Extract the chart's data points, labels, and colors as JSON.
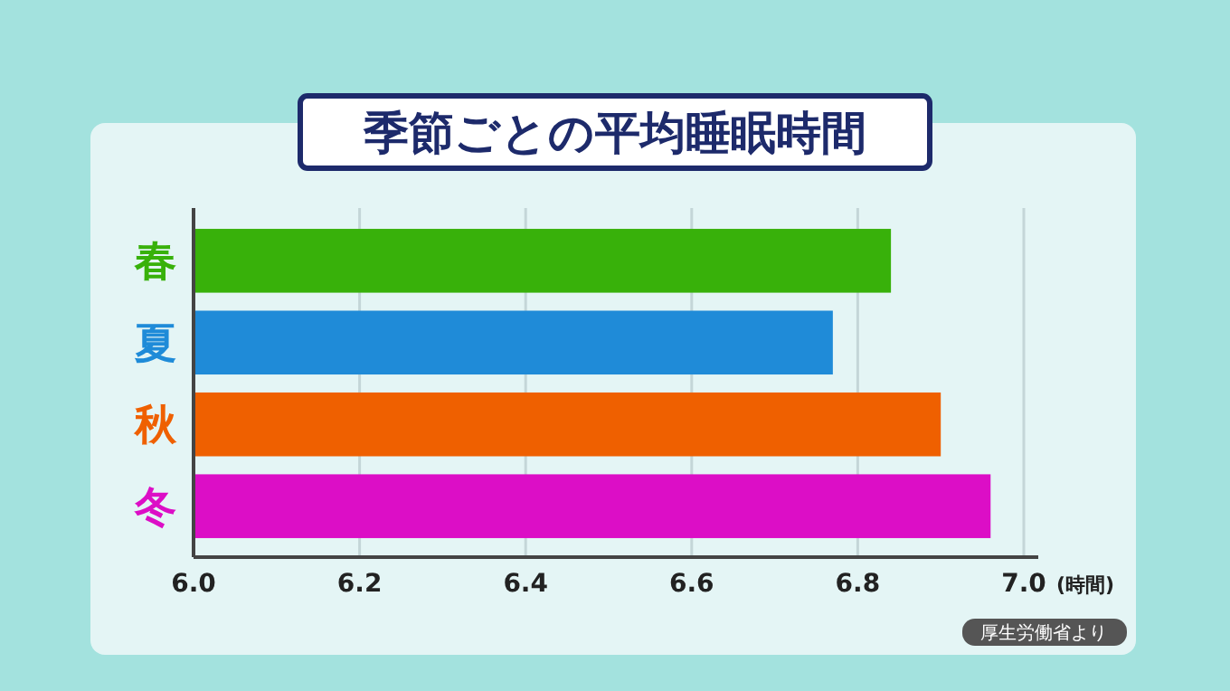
{
  "chart_data": {
    "type": "bar",
    "orientation": "horizontal",
    "title": "季節ごとの平均睡眠時間",
    "xlabel": "(時間)",
    "categories": [
      "春",
      "夏",
      "秋",
      "冬"
    ],
    "values": [
      6.84,
      6.77,
      6.9,
      6.96
    ],
    "colors": [
      "#38b10a",
      "#1f8bd8",
      "#ef6000",
      "#dc0ec6"
    ],
    "xlim": [
      6.0,
      7.0
    ],
    "xticks": [
      {
        "value": 6.0,
        "label": "6.0"
      },
      6.2,
      6.4,
      6.6,
      6.8,
      {
        "value": 7.0,
        "label": "7.0"
      }
    ],
    "grid": "x",
    "annotations": [
      "厚生労働省より"
    ]
  }
}
